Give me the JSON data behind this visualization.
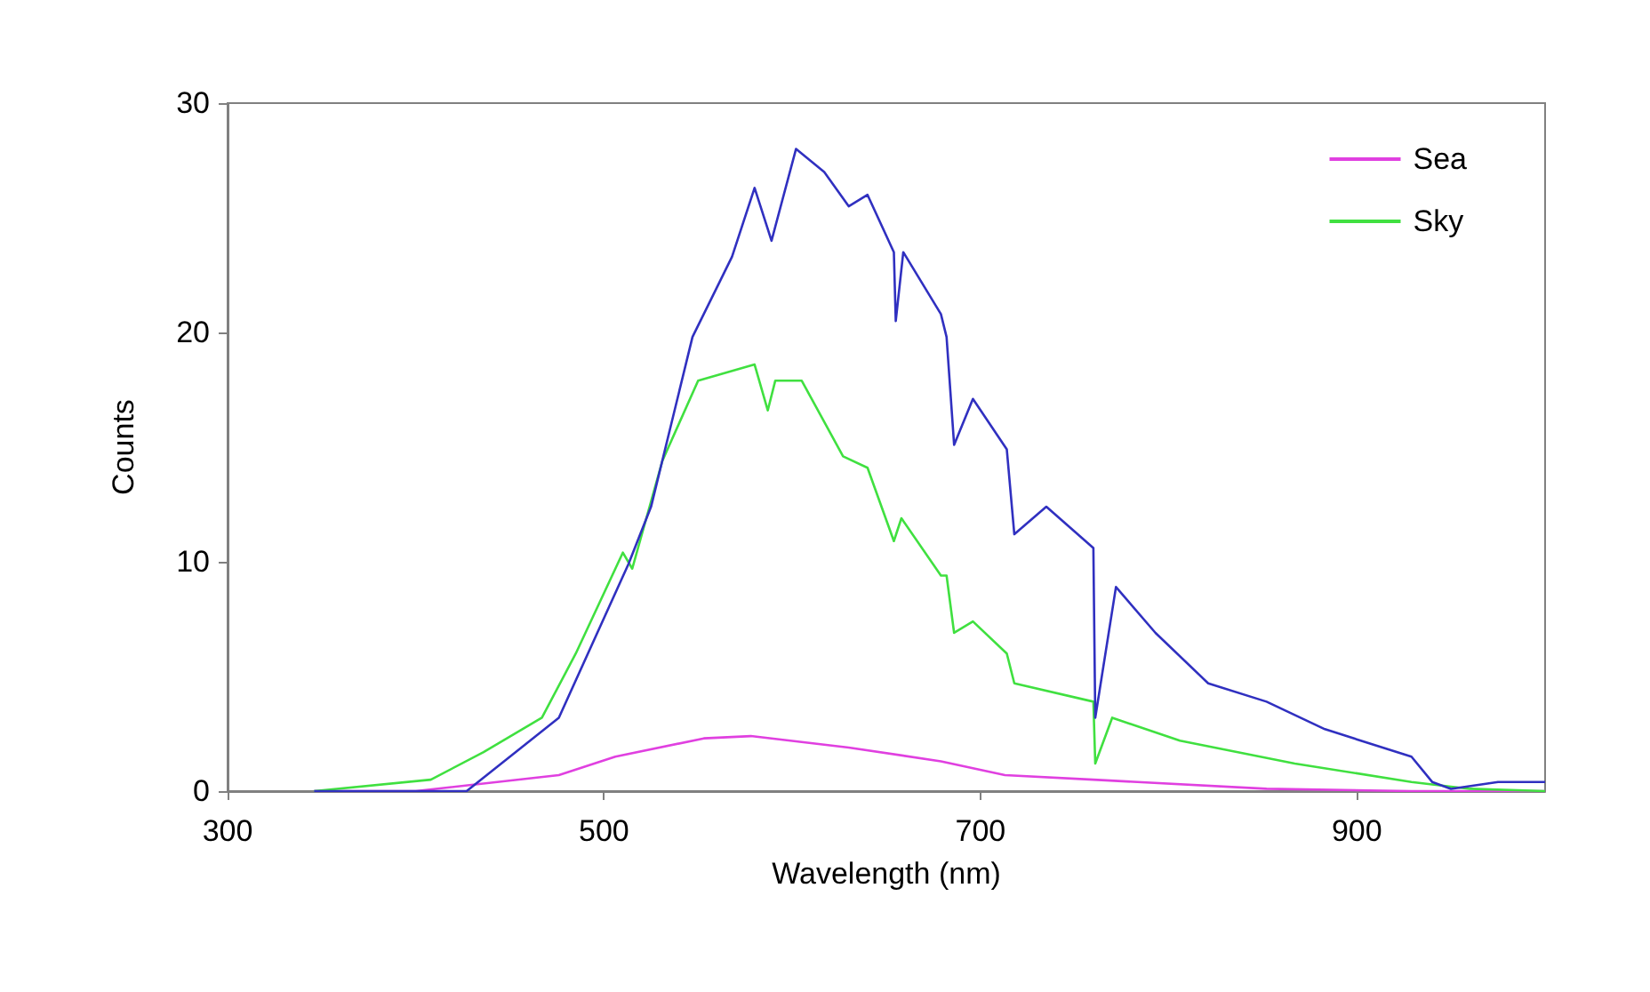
{
  "chart_data": {
    "type": "line",
    "xlabel": "Wavelength (nm)",
    "ylabel": "Counts",
    "xlim": [
      300,
      1000
    ],
    "xticks": [
      300,
      500,
      700,
      900
    ],
    "ylim": [
      0,
      30
    ],
    "yticks": [
      0,
      10,
      20,
      30
    ],
    "grid": false,
    "legend": "top right",
    "marker": "none",
    "line_style": "solid",
    "series": [
      {
        "name": "Sea",
        "color": "#e040e0",
        "x": [
          346,
          400,
          476,
          506,
          553,
          578,
          630,
          679,
          713,
          760,
          852,
          929,
          1000
        ],
        "values": [
          0,
          0,
          0.7,
          1.5,
          2.3,
          2.4,
          1.9,
          1.3,
          0.7,
          0.5,
          0.1,
          0,
          0
        ]
      },
      {
        "name": "Sky",
        "color": "#40e040",
        "x": [
          346,
          408,
          436,
          467,
          485,
          510,
          515,
          531,
          550,
          580,
          587,
          591,
          605,
          627,
          640,
          654,
          658,
          679,
          682,
          686,
          696,
          714,
          718,
          760,
          761,
          770,
          806,
          867,
          929,
          960,
          1000
        ],
        "values": [
          0,
          0.5,
          1.7,
          3.2,
          6,
          10.4,
          9.7,
          14.4,
          17.9,
          18.6,
          16.6,
          17.9,
          17.9,
          14.6,
          14.1,
          10.9,
          11.9,
          9.4,
          9.4,
          6.9,
          7.4,
          6,
          4.7,
          3.9,
          1.2,
          3.2,
          2.2,
          1.2,
          0.4,
          0.1,
          0
        ]
      },
      {
        "color": "#3030c0",
        "x": [
          346,
          427,
          476,
          513,
          525,
          547,
          568,
          580,
          589,
          602,
          617,
          630,
          640,
          654,
          655,
          659,
          679,
          682,
          686,
          696,
          714,
          718,
          735,
          760,
          761,
          772,
          793,
          821,
          852,
          883,
          929,
          940,
          950,
          975,
          1000
        ],
        "values": [
          0,
          0,
          3.2,
          9.9,
          12.4,
          19.8,
          23.3,
          26.3,
          24,
          28,
          27,
          25.5,
          26,
          23.5,
          20.5,
          23.5,
          20.8,
          19.8,
          15.1,
          17.1,
          14.9,
          11.2,
          12.4,
          10.6,
          3.2,
          8.9,
          6.9,
          4.7,
          3.9,
          2.7,
          1.5,
          0.4,
          0.1,
          0.4,
          0.4
        ]
      }
    ]
  }
}
